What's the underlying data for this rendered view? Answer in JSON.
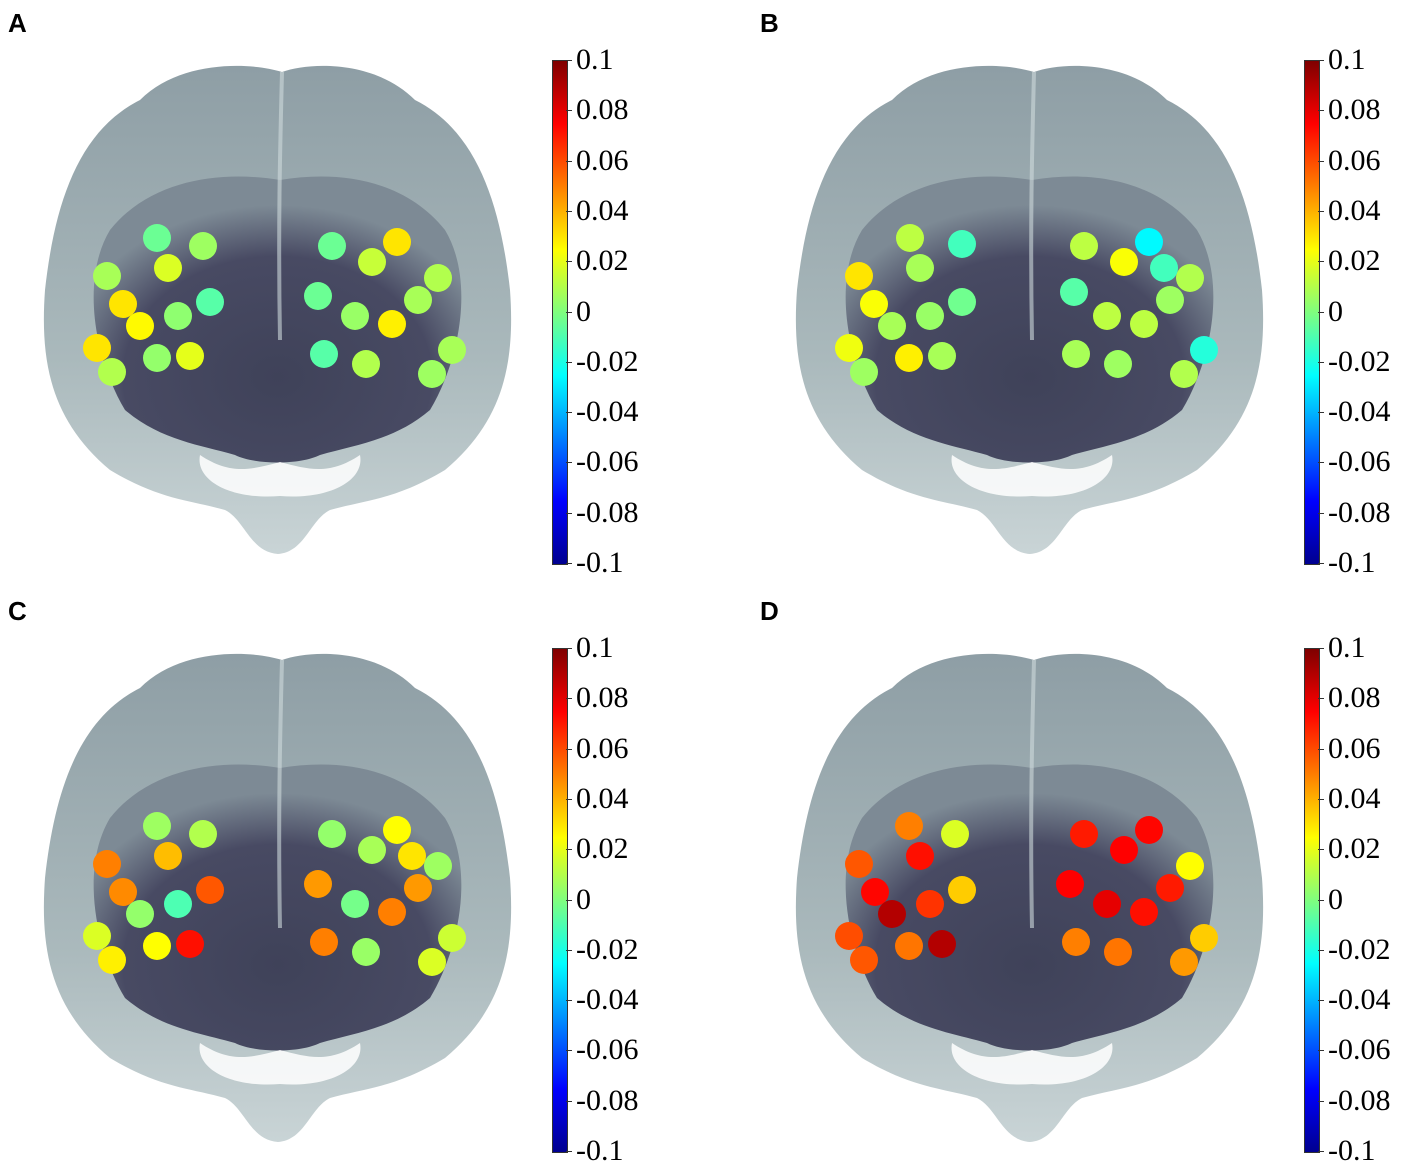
{
  "panels": [
    {
      "letter": "A",
      "electrodes": [
        {
          "value": -0.004
        },
        {
          "value": 0.006
        },
        {
          "value": 0.018
        },
        {
          "value": 0.008
        },
        {
          "value": 0.03
        },
        {
          "value": 0.026
        },
        {
          "value": 0.003
        },
        {
          "value": -0.008
        },
        {
          "value": 0.03
        },
        {
          "value": 0.01
        },
        {
          "value": 0.004
        },
        {
          "value": 0.02
        },
        {
          "value": -0.004
        },
        {
          "value": 0.014
        },
        {
          "value": 0.03
        },
        {
          "value": 0.01
        },
        {
          "value": 0.008
        },
        {
          "value": 0.005
        },
        {
          "value": 0.028
        },
        {
          "value": -0.004
        },
        {
          "value": -0.008
        },
        {
          "value": 0.01
        },
        {
          "value": 0.006
        },
        {
          "value": 0.008
        }
      ]
    },
    {
      "letter": "B",
      "electrodes": [
        {
          "value": 0.012
        },
        {
          "value": -0.012
        },
        {
          "value": 0.008
        },
        {
          "value": 0.03
        },
        {
          "value": 0.024
        },
        {
          "value": 0.008
        },
        {
          "value": 0.005
        },
        {
          "value": -0.003
        },
        {
          "value": 0.022
        },
        {
          "value": 0.006
        },
        {
          "value": 0.028
        },
        {
          "value": 0.008
        },
        {
          "value": 0.012
        },
        {
          "value": 0.024
        },
        {
          "value": -0.026
        },
        {
          "value": 0.01
        },
        {
          "value": -0.008
        },
        {
          "value": 0.012
        },
        {
          "value": 0.012
        },
        {
          "value": 0.006
        },
        {
          "value": 0.008
        },
        {
          "value": 0.006
        },
        {
          "value": 0.01
        },
        {
          "value": -0.018
        },
        {
          "value": -0.012
        }
      ]
    },
    {
      "letter": "C",
      "electrodes": [
        {
          "value": 0.006
        },
        {
          "value": 0.01
        },
        {
          "value": 0.038
        },
        {
          "value": 0.05
        },
        {
          "value": 0.048
        },
        {
          "value": 0.004
        },
        {
          "value": -0.01
        },
        {
          "value": 0.058
        },
        {
          "value": 0.018
        },
        {
          "value": 0.028
        },
        {
          "value": 0.025
        },
        {
          "value": 0.072
        },
        {
          "value": 0.004
        },
        {
          "value": 0.008
        },
        {
          "value": 0.025
        },
        {
          "value": 0.006
        },
        {
          "value": 0.045
        },
        {
          "value": -0.002
        },
        {
          "value": 0.05
        },
        {
          "value": 0.045
        },
        {
          "value": 0.05
        },
        {
          "value": 0.005
        },
        {
          "value": 0.018
        },
        {
          "value": 0.015
        },
        {
          "value": 0.03
        }
      ]
    },
    {
      "letter": "D",
      "electrodes": [
        {
          "value": 0.05
        },
        {
          "value": 0.018
        },
        {
          "value": 0.072
        },
        {
          "value": 0.058
        },
        {
          "value": 0.074
        },
        {
          "value": 0.09
        },
        {
          "value": 0.065
        },
        {
          "value": 0.035
        },
        {
          "value": 0.06
        },
        {
          "value": 0.058
        },
        {
          "value": 0.052
        },
        {
          "value": 0.09
        },
        {
          "value": 0.07
        },
        {
          "value": 0.075
        },
        {
          "value": 0.074
        },
        {
          "value": 0.025
        },
        {
          "value": 0.07
        },
        {
          "value": 0.08
        },
        {
          "value": 0.072
        },
        {
          "value": 0.075
        },
        {
          "value": 0.05
        },
        {
          "value": 0.052
        },
        {
          "value": 0.045
        },
        {
          "value": 0.035
        }
      ]
    }
  ],
  "colorbar": {
    "ticks": [
      "0.1",
      "0.08",
      "0.06",
      "0.04",
      "0.02",
      "0",
      "-0.02",
      "-0.04",
      "-0.06",
      "-0.08",
      "-0.1"
    ],
    "min": -0.1,
    "max": 0.1,
    "colormap": "jet"
  },
  "colors": {
    "head": "#aab9bc",
    "scalp_dark": "#484a63",
    "highlight": "#ffffff"
  }
}
